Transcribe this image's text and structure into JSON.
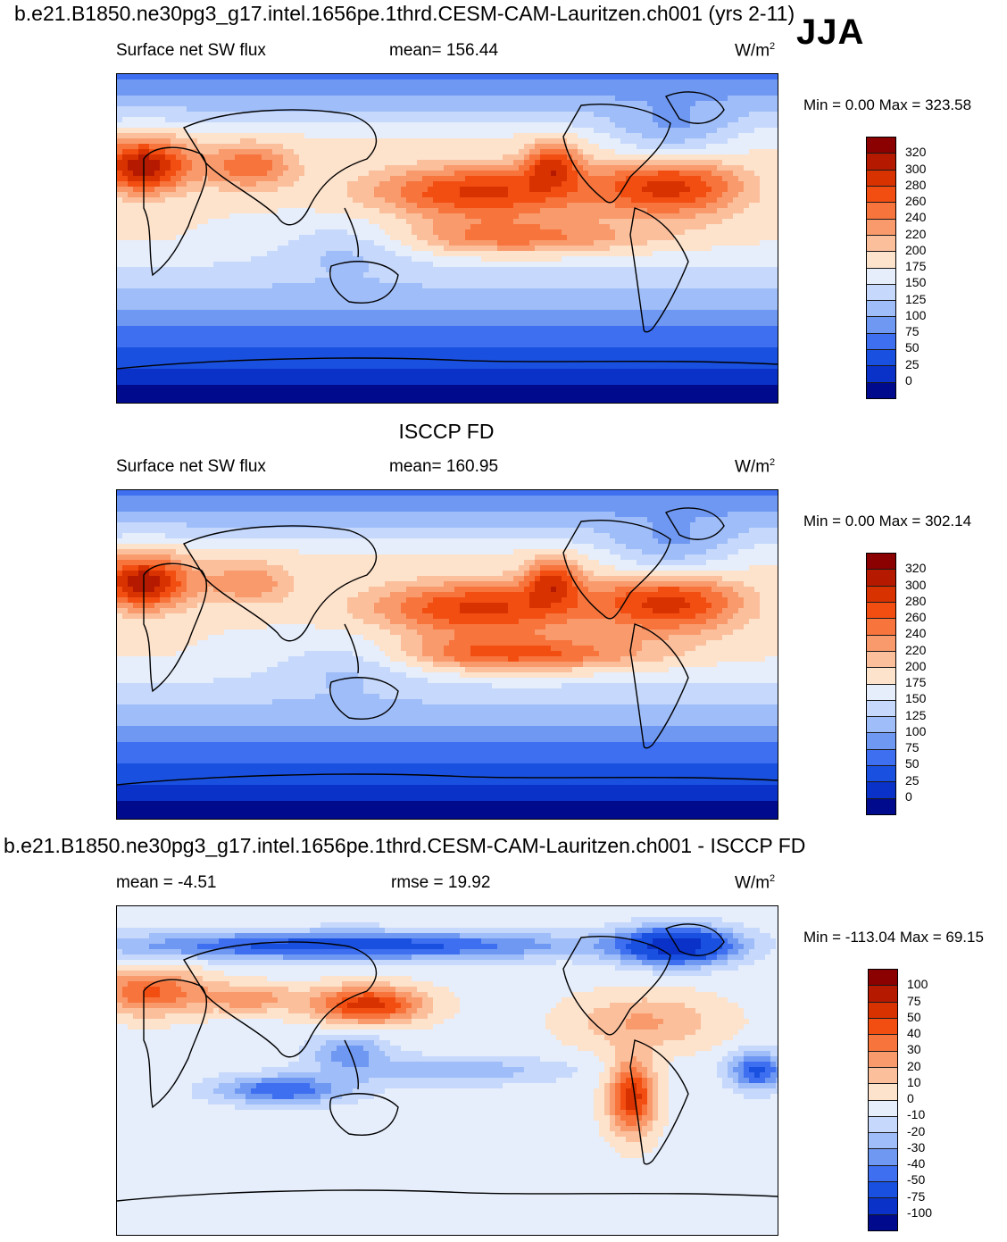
{
  "figure": {
    "case_title": "b.e21.B1850.ne30pg3_g17.intel.1656pe.1thrd.CESM-CAM-Lauritzen.ch001 (yrs 2-11)",
    "season": "JJA",
    "obs_title": "ISCCP FD",
    "diff_title": "b.e21.B1850.ne30pg3_g17.intel.1656pe.1thrd.CESM-CAM-Lauritzen.ch001 - ISCCP FD"
  },
  "chart_data": [
    {
      "type": "heatmap",
      "name": "model",
      "variable": "Surface net SW flux",
      "stat_text": "mean= 156.44",
      "units_base": "W/m",
      "units_exp": "2",
      "minmax_text": "Min =    0.00 Max = 323.58",
      "mean": 156.44,
      "min": 0.0,
      "max": 323.58,
      "levels": [
        "320",
        "300",
        "280",
        "260",
        "240",
        "220",
        "200",
        "175",
        "150",
        "125",
        "100",
        "75",
        "50",
        "25",
        "0"
      ],
      "colors": [
        "#8b0000",
        "#b51a00",
        "#d83200",
        "#f24e12",
        "#f7743c",
        "#f99a6c",
        "#fbbf9c",
        "#fde2cc",
        "#e6eefb",
        "#c6d8fb",
        "#9fbdf8",
        "#6f98f2",
        "#3d6ff0",
        "#1a50e0",
        "#0a32c8",
        "#000a8c"
      ],
      "xlim": [
        0,
        360
      ],
      "ylim": [
        -90,
        90
      ]
    },
    {
      "type": "heatmap",
      "name": "obs",
      "variable": "Surface net SW flux",
      "stat_text": "mean= 160.95",
      "units_base": "W/m",
      "units_exp": "2",
      "minmax_text": "Min =    0.00 Max = 302.14",
      "mean": 160.95,
      "min": 0.0,
      "max": 302.14,
      "levels": [
        "320",
        "300",
        "280",
        "260",
        "240",
        "220",
        "200",
        "175",
        "150",
        "125",
        "100",
        "75",
        "50",
        "25",
        "0"
      ],
      "colors": [
        "#8b0000",
        "#b51a00",
        "#d83200",
        "#f24e12",
        "#f7743c",
        "#f99a6c",
        "#fbbf9c",
        "#fde2cc",
        "#e6eefb",
        "#c6d8fb",
        "#9fbdf8",
        "#6f98f2",
        "#3d6ff0",
        "#1a50e0",
        "#0a32c8",
        "#000a8c"
      ],
      "xlim": [
        0,
        360
      ],
      "ylim": [
        -90,
        90
      ]
    },
    {
      "type": "heatmap",
      "name": "diff",
      "variable": "mean =  -4.51",
      "stat_text": "rmse =  19.92",
      "units_base": "W/m",
      "units_exp": "2",
      "minmax_text": "Min = -113.04 Max =  69.15",
      "mean": -4.51,
      "rmse": 19.92,
      "min": -113.04,
      "max": 69.15,
      "levels": [
        "100",
        "75",
        "50",
        "40",
        "30",
        "20",
        "10",
        "0",
        "-10",
        "-20",
        "-30",
        "-40",
        "-50",
        "-75",
        "-100"
      ],
      "colors": [
        "#8b0000",
        "#b51a00",
        "#d83200",
        "#f24e12",
        "#f7743c",
        "#f99a6c",
        "#fbbf9c",
        "#fde2cc",
        "#e6eefb",
        "#c6d8fb",
        "#9fbdf8",
        "#6f98f2",
        "#3d6ff0",
        "#1a50e0",
        "#0a32c8",
        "#000a8c"
      ],
      "xlim": [
        0,
        360
      ],
      "ylim": [
        -90,
        90
      ]
    }
  ]
}
